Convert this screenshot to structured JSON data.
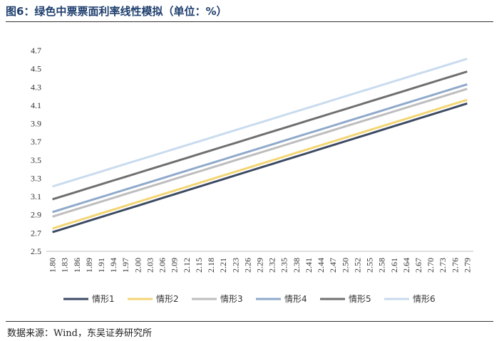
{
  "figure": {
    "title": "图6：绿色中票票面利率线性模拟（单位：%）",
    "source_label": "数据来源：",
    "source_text": "Wind，东吴证券研究所"
  },
  "chart_data": {
    "type": "line",
    "title": "图6：绿色中票票面利率线性模拟（单位：%）",
    "xlabel": "",
    "ylabel": "",
    "ylim": [
      2.5,
      4.7
    ],
    "yticks": [
      "2.5",
      "2.7",
      "2.9",
      "3.1",
      "3.3",
      "3.5",
      "3.7",
      "3.9",
      "4.1",
      "4.3",
      "4.5",
      "4.7"
    ],
    "x": [
      "1.80",
      "1.83",
      "1.86",
      "1.89",
      "1.91",
      "1.94",
      "1.97",
      "2.00",
      "2.03",
      "2.06",
      "2.09",
      "2.12",
      "2.15",
      "2.18",
      "2.21",
      "2.23",
      "2.26",
      "2.29",
      "2.32",
      "2.35",
      "2.38",
      "2.41",
      "2.44",
      "2.47",
      "2.50",
      "2.52",
      "2.55",
      "2.58",
      "2.61",
      "2.64",
      "2.67",
      "2.70",
      "2.73",
      "2.76",
      "2.79"
    ],
    "grid": false,
    "legend_position": "bottom",
    "series": [
      {
        "name": "情形1",
        "color": "#3c4a63",
        "start": 2.71,
        "end": 4.12
      },
      {
        "name": "情形2",
        "color": "#f3d572",
        "start": 2.75,
        "end": 4.16
      },
      {
        "name": "情形3",
        "color": "#bdbdbd",
        "start": 2.88,
        "end": 4.28
      },
      {
        "name": "情形4",
        "color": "#8fa9cb",
        "start": 2.93,
        "end": 4.33
      },
      {
        "name": "情形5",
        "color": "#6f6f6f",
        "start": 3.07,
        "end": 4.47
      },
      {
        "name": "情形6",
        "color": "#c9dbee",
        "start": 3.21,
        "end": 4.61
      }
    ]
  }
}
